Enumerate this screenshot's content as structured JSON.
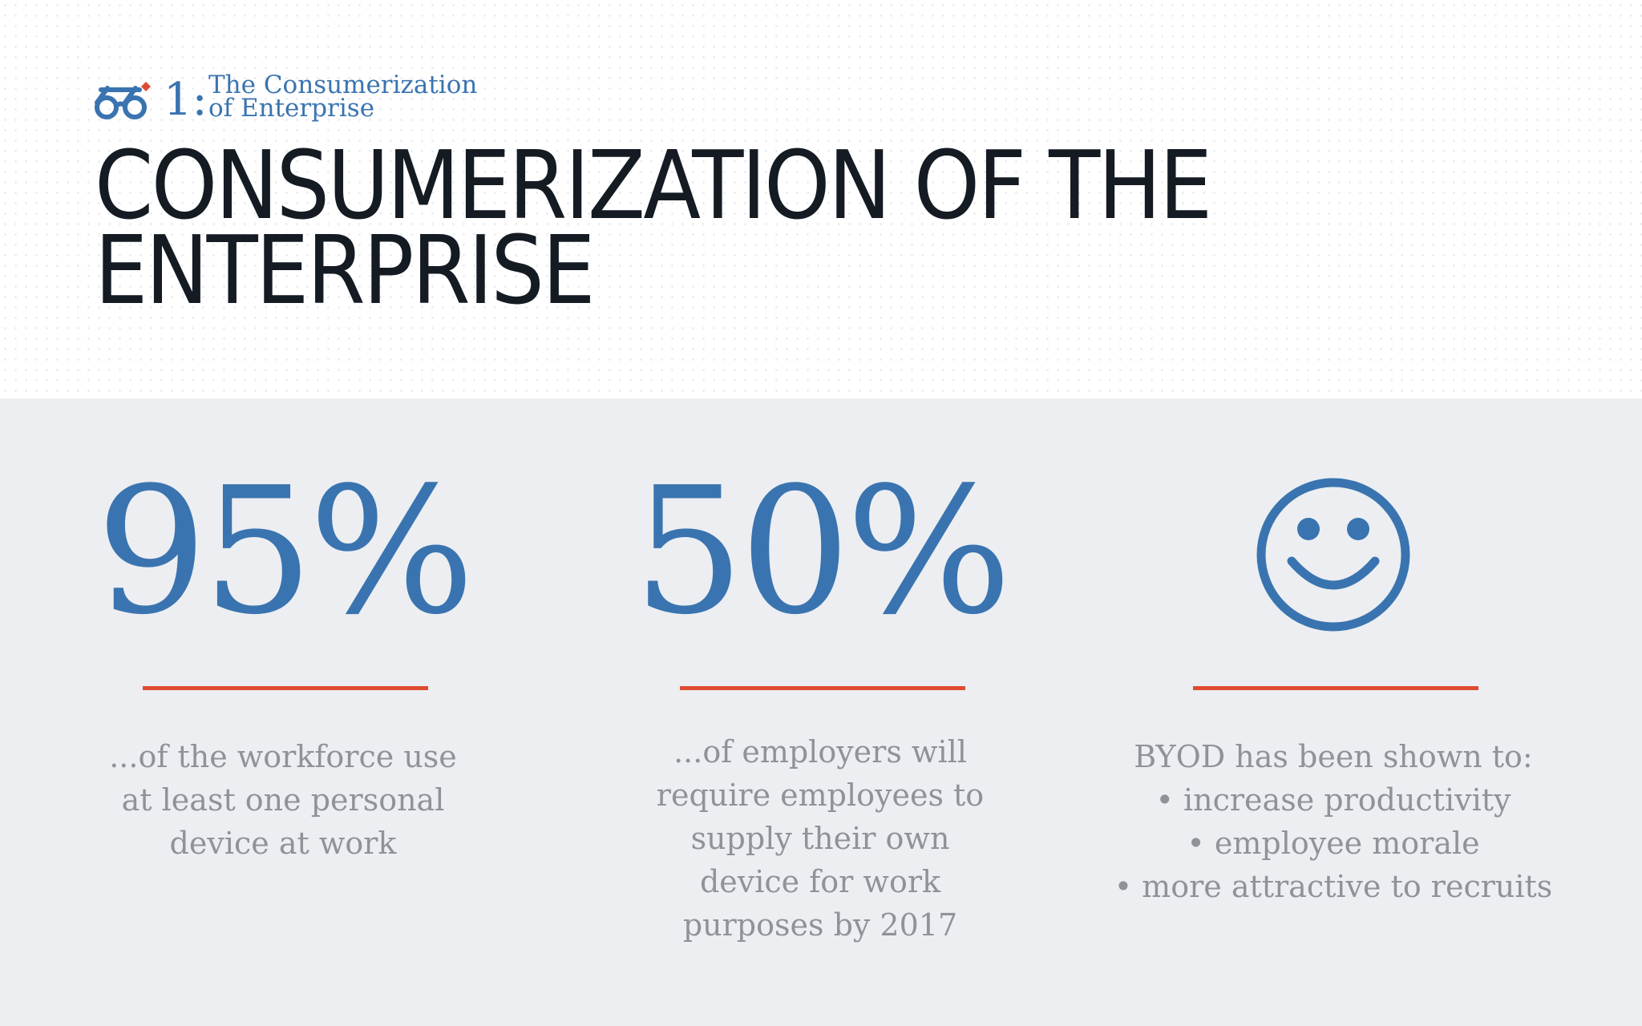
{
  "brand": {
    "logo_icon": "glasses-icon",
    "number": "1:",
    "title_line1": "The Consumerization",
    "title_line2": "of Enterprise",
    "colors": {
      "blue": "#3a74b0",
      "red": "#de4c31"
    }
  },
  "title": {
    "line1": "CONSUMERIZATION OF THE",
    "line2": "ENTERPRISE"
  },
  "stats": [
    {
      "value": "95%",
      "description": [
        "...of the workforce use",
        "at least one personal",
        "device at work"
      ]
    },
    {
      "value": "50%",
      "description": [
        "...of employers will",
        "require employees to",
        "supply their own",
        "device for work",
        "purposes by 2017"
      ]
    },
    {
      "icon": "smiley-face-icon",
      "description": [
        "BYOD has been shown to:",
        "• increase productivity",
        "• employee morale",
        "• more attractive to recruits"
      ]
    }
  ]
}
